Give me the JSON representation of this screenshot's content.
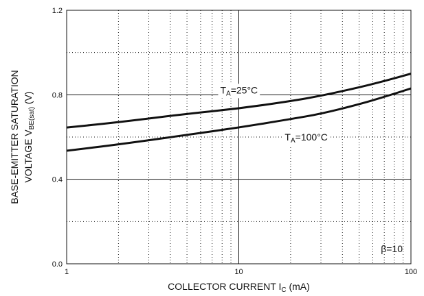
{
  "chart_data": {
    "type": "line",
    "x_scale": "log",
    "xlim": [
      1,
      100
    ],
    "ylim": [
      0.0,
      1.2
    ],
    "x_ticks": [
      {
        "value": 1,
        "label": "1"
      },
      {
        "value": 10,
        "label": "10"
      },
      {
        "value": 100,
        "label": "100"
      }
    ],
    "y_ticks": [
      {
        "value": 0.0,
        "label": "0.0"
      },
      {
        "value": 0.4,
        "label": "0.4"
      },
      {
        "value": 0.8,
        "label": "0.8"
      },
      {
        "value": 1.2,
        "label": "1.2"
      }
    ],
    "xlabel": {
      "main": "COLLECTOR CURRENT I",
      "sub": "C",
      "unit": " (mA)"
    },
    "ylabel_line1": "BASE-EMITTER SATURATION",
    "ylabel_line2": {
      "main": "VOLTAGE V",
      "sub": "BE(sat)",
      "unit": " (V)"
    },
    "grid": {
      "major": "solid",
      "minor": "dotted"
    },
    "series": [
      {
        "name": "TA=25°C",
        "label_main": "T",
        "label_sub": "A",
        "label_rest": "=25°C",
        "x": [
          1,
          2,
          5,
          10,
          20,
          30,
          50,
          70,
          100
        ],
        "y": [
          0.645,
          0.67,
          0.71,
          0.735,
          0.77,
          0.795,
          0.835,
          0.865,
          0.9
        ]
      },
      {
        "name": "TA=100°C",
        "label_main": "T",
        "label_sub": "A",
        "label_rest": "=100°C",
        "x": [
          1,
          2,
          5,
          10,
          20,
          30,
          50,
          70,
          100
        ],
        "y": [
          0.535,
          0.565,
          0.61,
          0.645,
          0.685,
          0.71,
          0.755,
          0.79,
          0.83
        ]
      }
    ],
    "annotations": [
      {
        "text": "β=10",
        "position": "bottom-right"
      }
    ],
    "colors": {
      "line": "#111111",
      "grid": "#111111",
      "background": "#ffffff"
    }
  }
}
